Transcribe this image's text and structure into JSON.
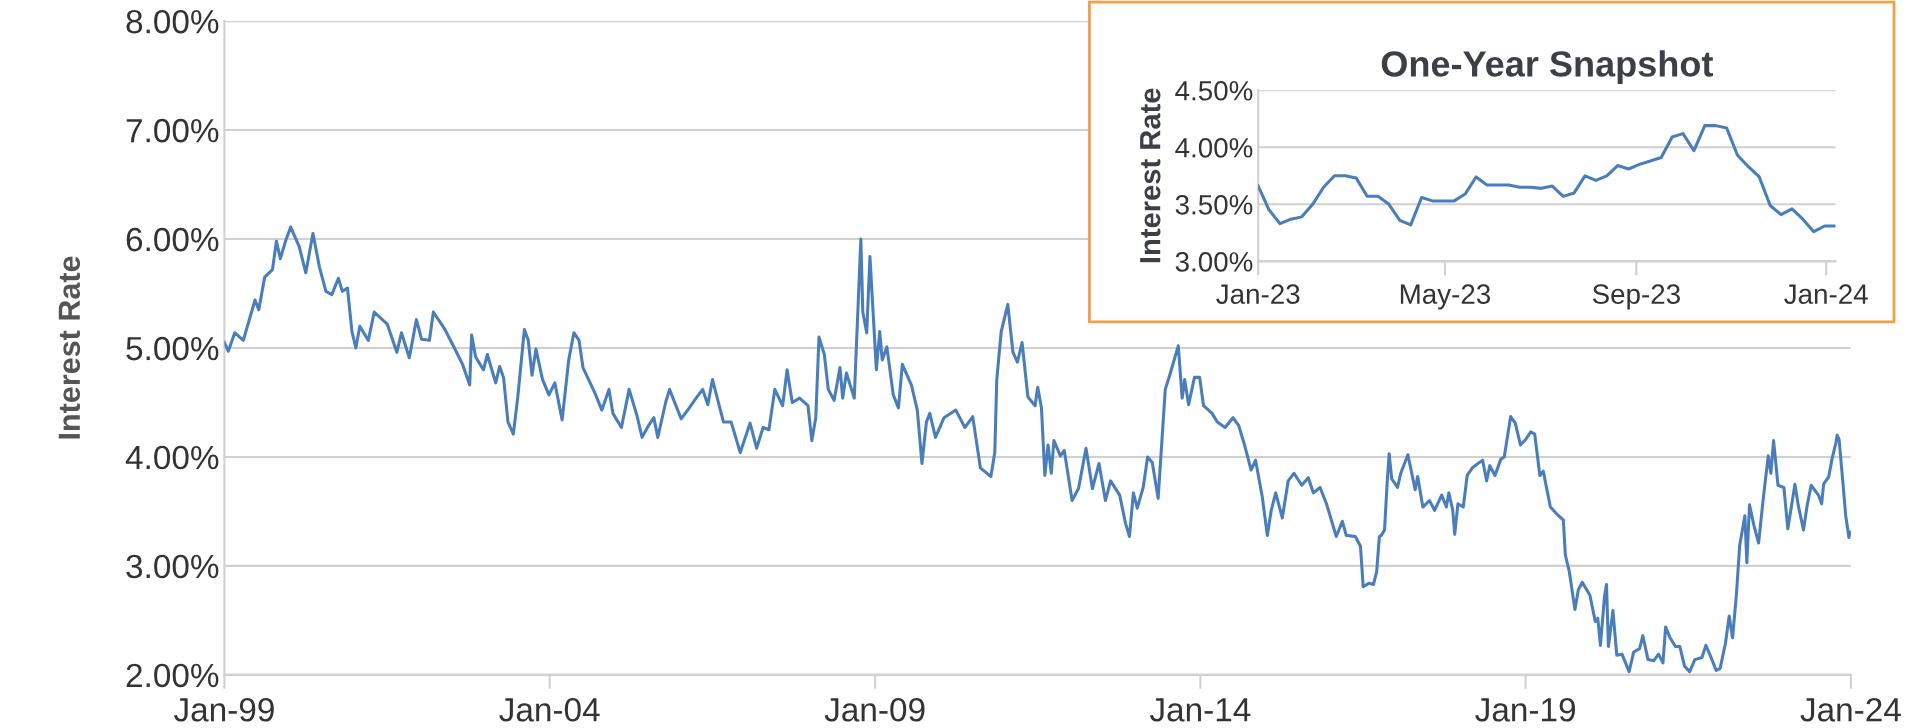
{
  "chart_data": [
    {
      "type": "line",
      "ylabel": "Interest Rate",
      "grid": "y",
      "line_style": "solid",
      "xlim": [
        "1999-01-01",
        "2024-01-01"
      ],
      "xticks": [
        {
          "value": "1999-01-01",
          "label": "Jan-99"
        },
        {
          "value": "2004-01-01",
          "label": "Jan-04"
        },
        {
          "value": "2009-01-01",
          "label": "Jan-09"
        },
        {
          "value": "2014-01-01",
          "label": "Jan-14"
        },
        {
          "value": "2019-01-01",
          "label": "Jan-19"
        },
        {
          "value": "2024-01-01",
          "label": "Jan-24"
        }
      ],
      "ylim": [
        2,
        8
      ],
      "yticks": [
        {
          "value": 2,
          "label": "2.00%"
        },
        {
          "value": 3,
          "label": "3.00%"
        },
        {
          "value": 4,
          "label": "4.00%"
        },
        {
          "value": 5,
          "label": "5.00%"
        },
        {
          "value": 6,
          "label": "6.00%"
        },
        {
          "value": 7,
          "label": "7.00%"
        },
        {
          "value": 8,
          "label": "8.00%"
        }
      ],
      "series": [
        {
          "color": "#4a7ebb",
          "x": [
            "1999-01-01",
            "1999-01-23",
            "1999-02-28",
            "1999-04-17",
            "1999-06-22",
            "1999-07-13",
            "1999-08-15",
            "1999-09-28",
            "1999-10-20",
            "1999-11-11",
            "1999-12-10",
            "2000-01-08",
            "2000-02-25",
            "2000-04-02",
            "2000-05-12",
            "2000-06-18",
            "2000-07-24",
            "2000-08-26",
            "2000-10-02",
            "2000-10-24",
            "2000-11-22",
            "2000-12-17",
            "2001-01-08",
            "2001-01-30",
            "2001-03-19",
            "2001-04-21",
            "2001-07-03",
            "2001-08-26",
            "2001-09-21",
            "2001-11-04",
            "2001-12-14",
            "2002-01-12",
            "2002-02-25",
            "2002-03-19",
            "2002-05-23",
            "2002-07-06",
            "2002-08-30",
            "2002-10-09",
            "2002-10-20",
            "2002-11-11",
            "2002-12-25",
            "2003-01-16",
            "2003-03-04",
            "2003-03-26",
            "2003-04-17",
            "2003-05-12",
            "2003-06-11",
            "2003-07-06",
            "2003-08-12",
            "2003-09-03",
            "2003-09-24",
            "2003-10-16",
            "2003-11-22",
            "2003-12-28",
            "2004-01-30",
            "2004-03-11",
            "2004-04-17",
            "2004-05-16",
            "2004-06-14",
            "2004-07-06",
            "2004-09-10",
            "2004-10-20",
            "2004-11-29",
            "2004-12-21",
            "2005-02-07",
            "2005-03-22",
            "2005-05-05",
            "2005-06-03",
            "2005-07-10",
            "2005-08-08",
            "2005-08-30",
            "2005-10-13",
            "2005-11-04",
            "2006-01-08",
            "2006-02-14",
            "2006-04-02",
            "2006-05-09",
            "2006-06-07",
            "2006-07-03",
            "2006-09-03",
            "2006-10-16",
            "2006-12-06",
            "2007-01-30",
            "2007-03-08",
            "2007-04-13",
            "2007-05-16",
            "2007-06-18",
            "2007-08-01",
            "2007-08-26",
            "2007-09-24",
            "2007-11-04",
            "2007-12-21",
            "2008-01-12",
            "2008-02-03",
            "2008-02-21",
            "2008-03-22",
            "2008-04-13",
            "2008-05-16",
            "2008-06-18",
            "2008-07-03",
            "2008-07-24",
            "2008-09-06",
            "2008-10-13",
            "2008-10-24",
            "2008-11-15",
            "2008-12-03",
            "2009-01-08",
            "2009-01-27",
            "2009-02-10",
            "2009-03-08",
            "2009-04-13",
            "2009-05-12",
            "2009-06-03",
            "2009-07-24",
            "2009-08-26",
            "2009-09-21",
            "2009-10-16",
            "2009-11-04",
            "2009-12-06",
            "2010-01-23",
            "2010-03-30",
            "2010-05-20",
            "2010-07-03",
            "2010-08-15",
            "2010-10-13",
            "2010-11-04",
            "2010-11-15",
            "2010-12-10",
            "2011-01-16",
            "2011-02-14",
            "2011-03-11",
            "2011-04-06",
            "2011-05-09",
            "2011-06-18",
            "2011-07-03",
            "2011-07-24",
            "2011-08-12",
            "2011-08-30",
            "2011-09-17",
            "2011-10-02",
            "2011-11-07",
            "2011-11-29",
            "2012-01-12",
            "2012-02-17",
            "2012-03-30",
            "2012-05-05",
            "2012-06-11",
            "2012-07-17",
            "2012-08-15",
            "2012-10-05",
            "2012-11-07",
            "2012-11-29",
            "2012-12-21",
            "2013-01-12",
            "2013-02-14",
            "2013-03-11",
            "2013-04-06",
            "2013-05-09",
            "2013-06-18",
            "2013-07-13",
            "2013-08-30",
            "2013-09-21",
            "2013-10-05",
            "2013-10-27",
            "2013-11-29",
            "2013-12-28",
            "2014-01-19",
            "2014-03-08",
            "2014-04-06",
            "2014-05-20",
            "2014-07-03",
            "2014-08-04",
            "2014-09-06",
            "2014-10-13",
            "2014-11-07",
            "2014-12-14",
            "2015-01-12",
            "2015-02-03",
            "2015-02-28",
            "2015-04-06",
            "2015-05-09",
            "2015-06-11",
            "2015-07-24",
            "2015-08-30",
            "2015-09-28",
            "2015-11-04",
            "2015-12-10",
            "2016-02-03",
            "2016-03-08",
            "2016-03-30",
            "2016-05-20",
            "2016-06-18",
            "2016-07-03",
            "2016-08-04",
            "2016-08-30",
            "2016-09-17",
            "2016-10-02",
            "2016-10-13",
            "2016-10-31",
            "2016-11-15",
            "2016-11-26",
            "2016-12-10",
            "2017-01-12",
            "2017-01-30",
            "2017-03-11",
            "2017-04-21",
            "2017-05-05",
            "2017-06-03",
            "2017-07-10",
            "2017-08-08",
            "2017-09-17",
            "2017-10-13",
            "2017-10-27",
            "2017-11-18",
            "2017-11-29",
            "2017-12-17",
            "2018-01-16",
            "2018-02-07",
            "2018-03-08",
            "2018-04-17",
            "2018-05-05",
            "2018-05-27",
            "2018-06-14",
            "2018-07-13",
            "2018-08-15",
            "2018-09-03",
            "2018-10-09",
            "2018-11-04",
            "2018-12-03",
            "2019-01-01",
            "2019-01-30",
            "2019-02-21",
            "2019-03-22",
            "2019-04-10",
            "2019-05-20",
            "2019-06-29",
            "2019-08-01",
            "2019-08-12",
            "2019-09-03",
            "2019-10-05",
            "2019-10-24",
            "2019-11-15",
            "2019-12-28",
            "2020-01-27",
            "2020-02-10",
            "2020-02-25",
            "2020-03-19",
            "2020-03-30",
            "2020-04-10",
            "2020-05-05",
            "2020-05-27",
            "2020-06-25",
            "2020-08-04",
            "2020-08-30",
            "2020-10-02",
            "2020-10-20",
            "2020-11-18",
            "2020-12-21",
            "2021-01-16",
            "2021-02-10",
            "2021-02-25",
            "2021-03-22",
            "2021-04-21",
            "2021-05-16",
            "2021-06-11",
            "2021-07-10",
            "2021-08-08",
            "2021-09-17",
            "2021-10-09",
            "2021-11-07",
            "2021-12-06",
            "2021-12-28",
            "2022-01-27",
            "2022-02-17",
            "2022-03-08",
            "2022-03-30",
            "2022-04-17",
            "2022-05-16",
            "2022-05-27",
            "2022-06-11",
            "2022-07-06",
            "2022-08-01",
            "2022-08-26",
            "2022-09-24",
            "2022-10-09",
            "2022-10-24",
            "2022-11-18",
            "2022-12-21",
            "2023-01-12",
            "2023-02-21",
            "2023-03-11",
            "2023-04-10",
            "2023-05-01",
            "2023-05-23",
            "2023-07-03",
            "2023-07-21",
            "2023-08-01",
            "2023-08-30",
            "2023-09-17",
            "2023-10-09",
            "2023-10-16",
            "2023-10-27",
            "2023-11-18",
            "2023-12-03",
            "2023-12-21",
            "2024-01-01"
          ],
          "values": [
            5.05,
            4.97,
            5.14,
            5.07,
            5.44,
            5.35,
            5.65,
            5.72,
            5.98,
            5.82,
            5.98,
            6.11,
            5.93,
            5.69,
            6.05,
            5.74,
            5.52,
            5.49,
            5.64,
            5.52,
            5.55,
            5.15,
            5.0,
            5.2,
            5.07,
            5.33,
            5.22,
            4.96,
            5.14,
            4.91,
            5.26,
            5.08,
            5.07,
            5.33,
            5.17,
            5.03,
            4.85,
            4.66,
            5.12,
            4.92,
            4.8,
            4.94,
            4.68,
            4.83,
            4.73,
            4.32,
            4.21,
            4.55,
            5.17,
            5.07,
            4.75,
            4.99,
            4.71,
            4.57,
            4.68,
            4.34,
            4.89,
            5.14,
            5.07,
            4.82,
            4.59,
            4.43,
            4.62,
            4.4,
            4.27,
            4.62,
            4.38,
            4.18,
            4.29,
            4.36,
            4.18,
            4.5,
            4.62,
            4.35,
            4.43,
            4.54,
            4.62,
            4.48,
            4.71,
            4.32,
            4.32,
            4.04,
            4.31,
            4.08,
            4.27,
            4.25,
            4.62,
            4.47,
            4.8,
            4.5,
            4.54,
            4.47,
            4.15,
            4.36,
            5.1,
            4.94,
            4.62,
            4.52,
            4.82,
            4.54,
            4.77,
            4.54,
            6.0,
            5.33,
            5.14,
            5.84,
            4.8,
            5.15,
            4.89,
            5.01,
            4.57,
            4.45,
            4.85,
            4.66,
            4.43,
            3.94,
            4.32,
            4.4,
            4.18,
            4.36,
            4.43,
            4.27,
            4.37,
            3.9,
            3.82,
            4.04,
            4.71,
            5.15,
            5.4,
            4.96,
            4.87,
            5.05,
            4.55,
            4.47,
            4.64,
            4.45,
            3.83,
            4.11,
            3.85,
            4.15,
            4.01,
            4.06,
            3.6,
            3.71,
            4.08,
            3.71,
            3.94,
            3.6,
            3.78,
            3.65,
            3.39,
            3.27,
            3.67,
            3.53,
            3.72,
            4.0,
            3.95,
            3.62,
            4.62,
            4.75,
            5.02,
            4.54,
            4.71,
            4.48,
            4.73,
            4.73,
            4.47,
            4.4,
            4.32,
            4.27,
            4.36,
            4.29,
            4.11,
            3.88,
            3.97,
            3.64,
            3.28,
            3.51,
            3.67,
            3.44,
            3.78,
            3.85,
            3.74,
            3.81,
            3.67,
            3.72,
            3.57,
            3.27,
            3.41,
            3.28,
            3.27,
            3.18,
            2.81,
            2.84,
            2.83,
            2.95,
            3.27,
            3.28,
            3.33,
            3.77,
            4.03,
            3.8,
            3.72,
            3.85,
            4.02,
            3.7,
            3.82,
            3.54,
            3.6,
            3.51,
            3.65,
            3.54,
            3.67,
            3.51,
            3.29,
            3.57,
            3.54,
            3.83,
            3.9,
            3.95,
            3.97,
            3.78,
            3.92,
            3.83,
            3.98,
            4.0,
            4.37,
            4.31,
            4.11,
            4.16,
            4.23,
            4.21,
            3.83,
            3.87,
            3.54,
            3.47,
            3.42,
            3.1,
            2.95,
            2.6,
            2.78,
            2.85,
            2.73,
            2.49,
            2.52,
            2.27,
            2.72,
            2.83,
            2.26,
            2.59,
            2.18,
            2.19,
            2.03,
            2.21,
            2.24,
            2.36,
            2.14,
            2.13,
            2.19,
            2.11,
            2.44,
            2.34,
            2.26,
            2.26,
            2.08,
            2.03,
            2.14,
            2.16,
            2.27,
            2.16,
            2.04,
            2.06,
            2.29,
            2.54,
            2.34,
            2.75,
            3.19,
            3.46,
            3.03,
            3.56,
            3.37,
            3.21,
            3.6,
            4.01,
            3.85,
            4.15,
            3.74,
            3.72,
            3.34,
            3.75,
            3.56,
            3.33,
            3.56,
            3.74,
            3.65,
            3.57,
            3.75,
            3.82,
            3.98,
            4.13,
            4.2,
            4.16,
            3.75,
            3.46,
            3.26,
            3.31
          ]
        }
      ]
    },
    {
      "type": "line",
      "title": "One-Year Snapshot",
      "ylabel": "Interest Rate",
      "grid": "y",
      "line_style": "solid",
      "xlim": [
        "2023-01-01",
        "2024-01-07"
      ],
      "xticks": [
        {
          "value": "2023-01-01",
          "label": "Jan-23"
        },
        {
          "value": "2023-05-01",
          "label": "May-23"
        },
        {
          "value": "2023-09-01",
          "label": "Sep-23"
        },
        {
          "value": "2024-01-01",
          "label": "Jan-24"
        }
      ],
      "ylim": [
        3,
        4.5
      ],
      "yticks": [
        {
          "value": 3,
          "label": "3.00%"
        },
        {
          "value": 3.5,
          "label": "3.50%"
        },
        {
          "value": 4,
          "label": "4.00%"
        },
        {
          "value": 4.5,
          "label": "4.50%"
        }
      ],
      "series": [
        {
          "color": "#4a7ebb",
          "x": [
            "2023-01-01",
            "2023-01-08",
            "2023-01-15",
            "2023-01-22",
            "2023-01-29",
            "2023-02-05",
            "2023-02-12",
            "2023-02-19",
            "2023-02-26",
            "2023-03-05",
            "2023-03-12",
            "2023-03-19",
            "2023-03-26",
            "2023-04-02",
            "2023-04-09",
            "2023-04-16",
            "2023-04-23",
            "2023-04-30",
            "2023-05-07",
            "2023-05-14",
            "2023-05-21",
            "2023-05-28",
            "2023-06-04",
            "2023-06-11",
            "2023-06-18",
            "2023-06-25",
            "2023-07-02",
            "2023-07-09",
            "2023-07-16",
            "2023-07-23",
            "2023-07-30",
            "2023-08-06",
            "2023-08-13",
            "2023-08-20",
            "2023-08-27",
            "2023-09-03",
            "2023-09-10",
            "2023-09-17",
            "2023-09-24",
            "2023-10-01",
            "2023-10-08",
            "2023-10-15",
            "2023-10-22",
            "2023-10-29",
            "2023-11-05",
            "2023-11-12",
            "2023-11-19",
            "2023-11-26",
            "2023-12-03",
            "2023-12-10",
            "2023-12-17",
            "2023-12-24",
            "2023-12-31",
            "2024-01-07"
          ],
          "values": [
            3.66,
            3.45,
            3.33,
            3.37,
            3.39,
            3.5,
            3.65,
            3.75,
            3.75,
            3.73,
            3.57,
            3.57,
            3.5,
            3.36,
            3.32,
            3.56,
            3.53,
            3.53,
            3.53,
            3.59,
            3.74,
            3.67,
            3.67,
            3.67,
            3.65,
            3.65,
            3.64,
            3.66,
            3.57,
            3.6,
            3.75,
            3.71,
            3.75,
            3.84,
            3.81,
            3.85,
            3.88,
            3.91,
            4.09,
            4.12,
            3.97,
            4.19,
            4.19,
            4.17,
            3.93,
            3.83,
            3.74,
            3.49,
            3.41,
            3.46,
            3.37,
            3.26,
            3.31,
            3.31
          ]
        }
      ]
    }
  ]
}
